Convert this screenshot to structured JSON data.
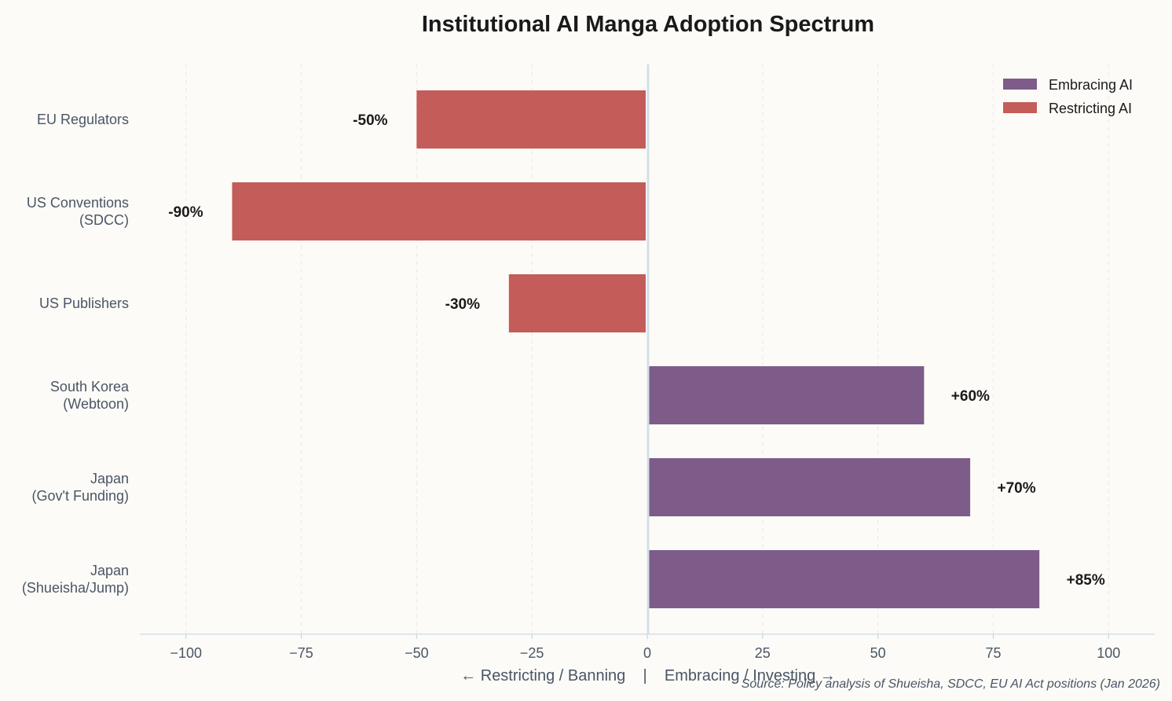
{
  "chart_data": {
    "type": "bar",
    "orientation": "horizontal",
    "title": "Institutional AI Manga Adoption Spectrum",
    "xlabel": "← Restricting / Banning    |    Embracing / Investing →",
    "ylabel": "",
    "xlim": [
      -110,
      110
    ],
    "xticks": [
      -100,
      -75,
      -50,
      -25,
      0,
      25,
      50,
      75,
      100
    ],
    "xtick_labels": [
      "−100",
      "−75",
      "−50",
      "−25",
      "0",
      "25",
      "50",
      "75",
      "100"
    ],
    "grid": "vertical dashed",
    "legend_position": "top-right",
    "categories": [
      [
        "EU Regulators"
      ],
      [
        "US Conventions",
        "(SDCC)"
      ],
      [
        "US Publishers"
      ],
      [
        "South Korea",
        "(Webtoon)"
      ],
      [
        "Japan",
        "(Gov't Funding)"
      ],
      [
        "Japan",
        "(Shueisha/Jump)"
      ]
    ],
    "values": [
      -50,
      -90,
      -30,
      60,
      70,
      85
    ],
    "data_labels": [
      "-50%",
      "-90%",
      "-30%",
      "+60%",
      "+70%",
      "+85%"
    ],
    "series": [
      {
        "name": "Embracing AI",
        "color": "#7d5c8a"
      },
      {
        "name": "Restricting AI",
        "color": "#c45c5a"
      }
    ],
    "source": "Source: Policy analysis of Shueisha, SDCC, EU AI Act positions (Jan 2026)"
  }
}
